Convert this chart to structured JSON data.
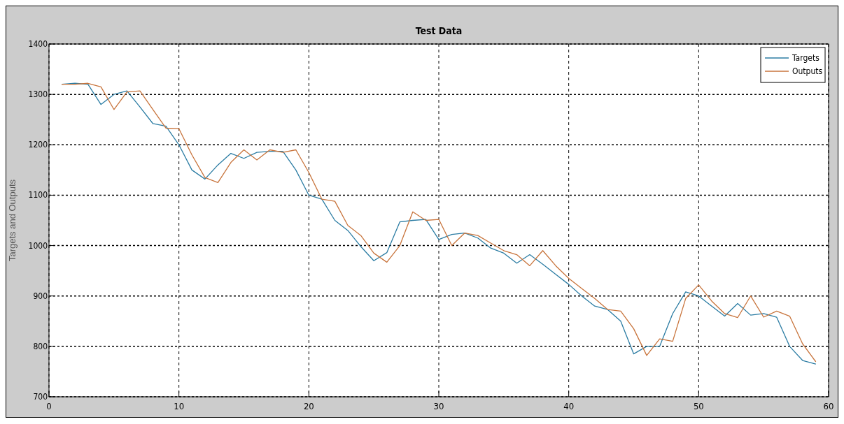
{
  "chart_data": {
    "type": "line",
    "title": "Test Data",
    "ylabel": "Targets and Outputs",
    "x": [
      1,
      2,
      3,
      4,
      5,
      6,
      7,
      8,
      9,
      10,
      11,
      12,
      13,
      14,
      15,
      16,
      17,
      18,
      19,
      20,
      21,
      22,
      23,
      24,
      25,
      26,
      27,
      28,
      29,
      30,
      31,
      32,
      33,
      34,
      35,
      36,
      37,
      38,
      39,
      40,
      41,
      42,
      43,
      44,
      45,
      46,
      47,
      48,
      49,
      50,
      51,
      52,
      53,
      54,
      55,
      56,
      57,
      58,
      59
    ],
    "series": [
      {
        "name": "Targets",
        "color": "#2b7ca3",
        "values": [
          1320,
          1322,
          1320,
          1280,
          1300,
          1307,
          1275,
          1242,
          1237,
          1200,
          1150,
          1132,
          1160,
          1183,
          1173,
          1185,
          1187,
          1187,
          1150,
          1100,
          1092,
          1050,
          1030,
          998,
          970,
          986,
          1047,
          1050,
          1052,
          1012,
          1022,
          1025,
          1015,
          995,
          985,
          965,
          982,
          963,
          943,
          923,
          900,
          880,
          873,
          850,
          785,
          800,
          800,
          865,
          908,
          900,
          880,
          860,
          885,
          862,
          865,
          858,
          800,
          772,
          765
        ]
      },
      {
        "name": "Outputs",
        "color": "#c8743c",
        "values": [
          1320,
          1320,
          1322,
          1315,
          1270,
          1305,
          1307,
          1270,
          1233,
          1232,
          1180,
          1135,
          1125,
          1165,
          1190,
          1170,
          1190,
          1185,
          1190,
          1145,
          1092,
          1088,
          1040,
          1020,
          985,
          967,
          1000,
          1067,
          1050,
          1052,
          1000,
          1025,
          1020,
          1005,
          990,
          982,
          960,
          990,
          960,
          935,
          915,
          895,
          873,
          870,
          835,
          782,
          815,
          810,
          895,
          922,
          890,
          865,
          857,
          900,
          858,
          870,
          860,
          805,
          770
        ]
      }
    ],
    "xlim": [
      0,
      60
    ],
    "xticks": [
      0,
      10,
      20,
      30,
      40,
      50,
      60
    ],
    "ylim": [
      700,
      1400
    ],
    "yticks": [
      700,
      800,
      900,
      1000,
      1100,
      1200,
      1300,
      1400
    ],
    "grid": true,
    "legend": "top right",
    "line_style": "solid",
    "marker": "none"
  }
}
